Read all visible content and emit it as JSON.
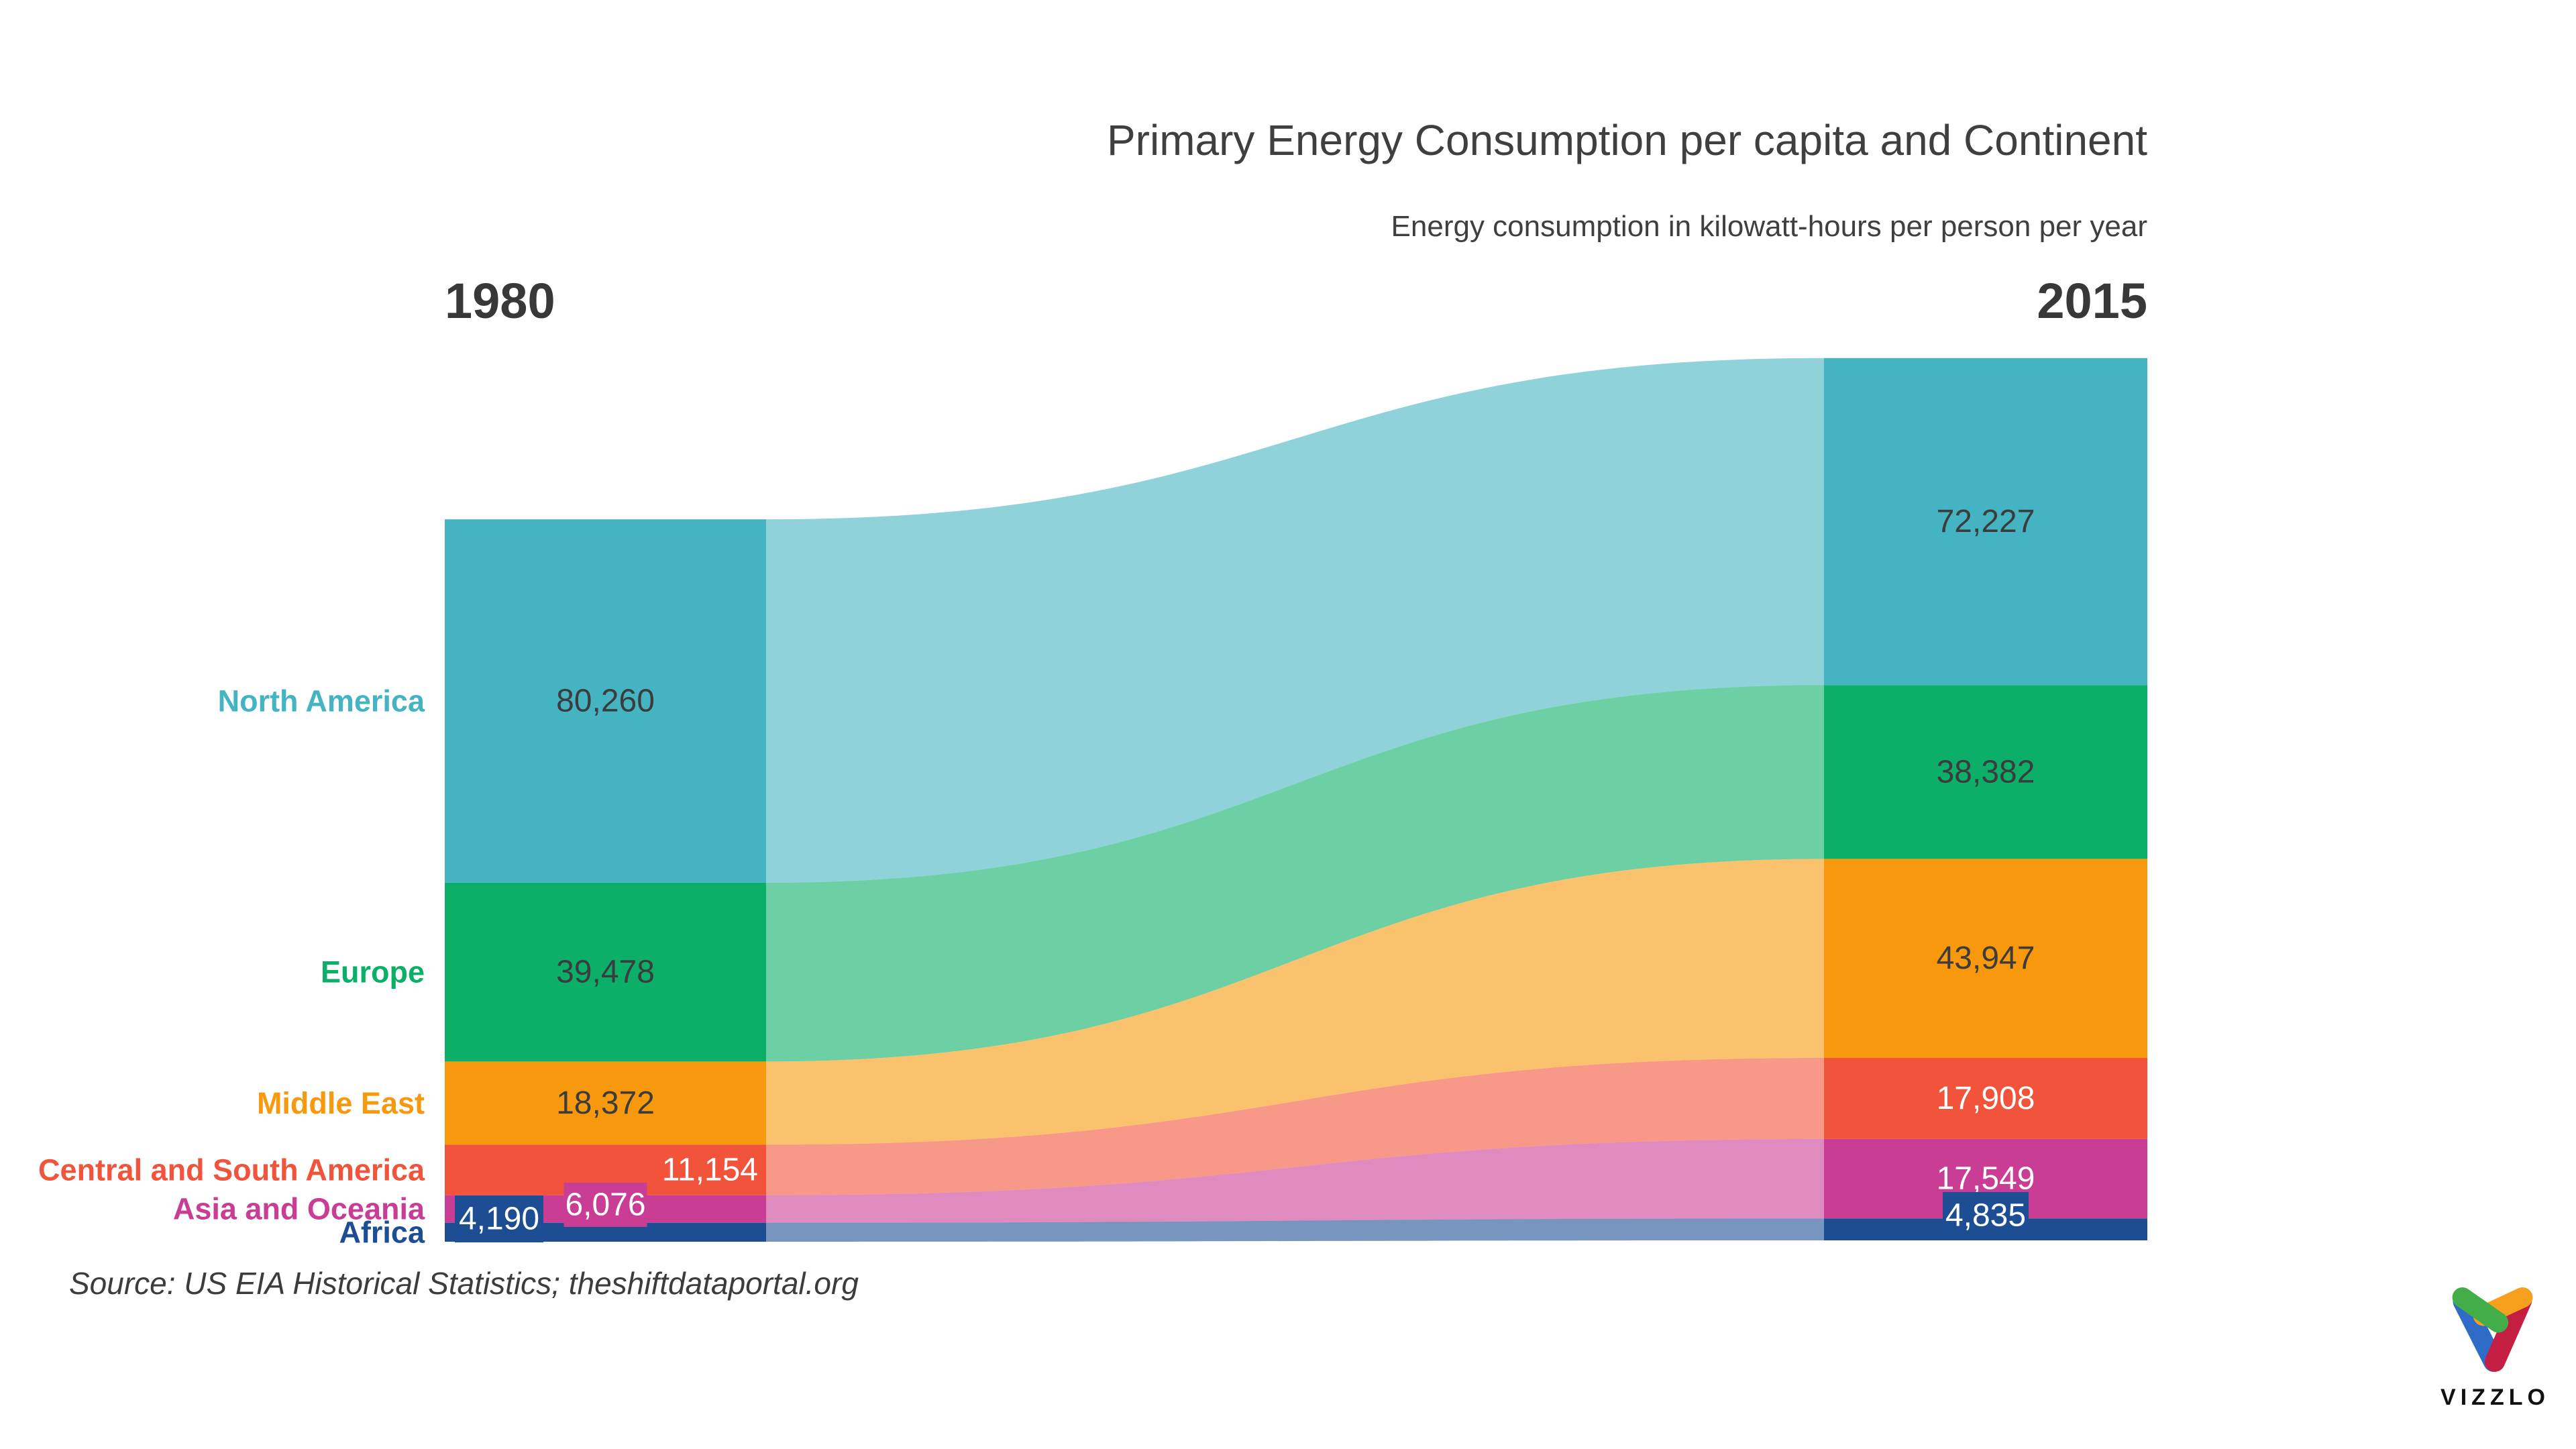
{
  "header": {
    "title": "Primary Energy Consumption per capita and Continent",
    "subtitle": "Energy consumption in kilowatt-hours per person per year"
  },
  "columns": {
    "left_year": "1980",
    "right_year": "2015"
  },
  "source": {
    "text": "Source: US EIA Historical Statistics; theshiftdataportal.org"
  },
  "logo": {
    "text": "VIZZLO",
    "mark": {
      "blue": "#2f6bc7",
      "red": "#c41e42",
      "orange": "#f6a01e",
      "green": "#42ad49"
    }
  },
  "chart_data": {
    "type": "sankey",
    "title": "Primary Energy Consumption per capita and Continent",
    "subtitle": "Energy consumption in kilowatt-hours per person per year",
    "years": [
      "1980",
      "2015"
    ],
    "unit": "kilowatt-hours per person per year",
    "legend_position": "left-labels",
    "grid": false,
    "flow_opacity": 0.6,
    "text_colors": {
      "dark_value": "#3c3c3c",
      "light_value": "#ffffff"
    },
    "categories": [
      {
        "name": "North America",
        "color": "#45b4c2",
        "values": {
          "1980": 80260,
          "2015": 72227
        },
        "labels": {
          "1980": {
            "text": "80,260",
            "variant": "dark"
          },
          "2015": {
            "text": "72,227",
            "variant": "dark"
          }
        }
      },
      {
        "name": "Europe",
        "color": "#0caf68",
        "values": {
          "1980": 39478,
          "2015": 38382
        },
        "labels": {
          "1980": {
            "text": "39,478",
            "variant": "dark"
          },
          "2015": {
            "text": "38,382",
            "variant": "dark"
          }
        }
      },
      {
        "name": "Middle East",
        "color": "#f8990d",
        "values": {
          "1980": 18372,
          "2015": 43947
        },
        "labels": {
          "1980": {
            "text": "18,372",
            "variant": "dark"
          },
          "2015": {
            "text": "43,947",
            "variant": "dark"
          }
        }
      },
      {
        "name": "Central and South America",
        "color": "#f1533b",
        "values": {
          "1980": 11154,
          "2015": 17908
        },
        "labels": {
          "1980": {
            "text": "11,154",
            "variant": "white-right"
          },
          "2015": {
            "text": "17,908",
            "variant": "white"
          }
        }
      },
      {
        "name": "Asia and Oceania",
        "color": "#c93d95",
        "values": {
          "1980": 6076,
          "2015": 17549
        },
        "labels": {
          "1980": {
            "text": "6,076",
            "variant": "pill"
          },
          "2015": {
            "text": "17,549",
            "variant": "white"
          }
        }
      },
      {
        "name": "Africa",
        "color": "#1d4e94",
        "values": {
          "1980": 4190,
          "2015": 4835
        },
        "labels": {
          "1980": {
            "text": "4,190",
            "variant": "pill"
          },
          "2015": {
            "text": "4,835",
            "variant": "pill"
          }
        }
      }
    ]
  }
}
